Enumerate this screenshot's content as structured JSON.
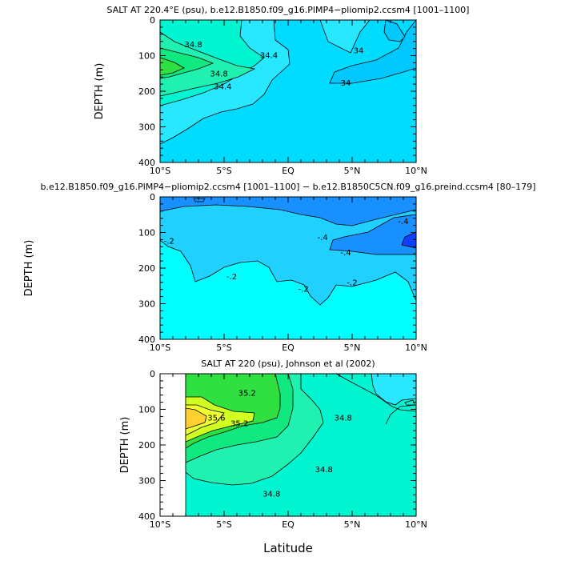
{
  "colors": {
    "c33_8": "#00c8ff",
    "c34_0": "#00dcff",
    "c34_4": "#28e8ff",
    "c34_6": "#00f5d0",
    "c34_8": "#20f0b0",
    "c35_0": "#10e880",
    "c35_2": "#30e040",
    "c35_6": "#d0ff20",
    "c35_8": "#ffd030",
    "d_m6": "#1040ff",
    "d_m4": "#1890ff",
    "d_m2": "#20d0ff",
    "d_0": "#00ffff"
  },
  "figure": {
    "xlabel": "Latitude"
  },
  "chart_data": [
    {
      "type": "heatmap",
      "title": "SALT AT 220.4°E (psu), b.e12.B1850.f09_g16.PlMP4−pliomip2.ccsm4 [1001–1100]",
      "xlabel": "",
      "ylabel": "DEPTH (m)",
      "xlim": [
        -10,
        10
      ],
      "ylim": [
        400,
        0
      ],
      "x_ticks": [
        "10°S",
        "5°S",
        "EQ",
        "5°N",
        "10°N"
      ],
      "y_ticks": [
        "0",
        "100",
        "200",
        "300",
        "400"
      ],
      "contour_labels": [
        {
          "text": "34.8",
          "x": -7.4,
          "y": 70
        },
        {
          "text": "34.4",
          "x": -1.5,
          "y": 100
        },
        {
          "text": "34.8",
          "x": -5.4,
          "y": 152
        },
        {
          "text": "34.4",
          "x": -5.1,
          "y": 188
        },
        {
          "text": "34",
          "x": 5.5,
          "y": 87
        },
        {
          "text": "34",
          "x": 4.5,
          "y": 178
        }
      ]
    },
    {
      "type": "heatmap",
      "title": "b.e12.B1850.f09_g16.PlMP4−pliomip2.ccsm4 [1001–1100] − b.e12.B1850C5CN.f09_g16.preind.ccsm4 [80–179]",
      "xlabel": "",
      "ylabel": "DEPTH (m)",
      "xlim": [
        -10,
        10
      ],
      "ylim": [
        400,
        0
      ],
      "x_ticks": [
        "10°S",
        "5°S",
        "EQ",
        "5°N",
        "10°N"
      ],
      "y_ticks": [
        "0",
        "100",
        "200",
        "300",
        "400"
      ],
      "contour_labels": [
        {
          "text": "-.4",
          "x": 9.0,
          "y": 70
        },
        {
          "text": "-.4",
          "x": 2.7,
          "y": 115
        },
        {
          "text": "-.4",
          "x": 4.5,
          "y": 157
        },
        {
          "text": "-.2",
          "x": -9.3,
          "y": 125
        },
        {
          "text": "-.2",
          "x": -4.4,
          "y": 225
        },
        {
          "text": "-.2",
          "x": 1.2,
          "y": 260
        },
        {
          "text": "-.2",
          "x": 5.0,
          "y": 242
        }
      ]
    },
    {
      "type": "heatmap",
      "title": "SALT AT 220 (psu), Johnson et al (2002)",
      "xlabel": "Latitude",
      "ylabel": "DEPTH (m)",
      "xlim": [
        -10,
        10
      ],
      "ylim": [
        400,
        0
      ],
      "x_ticks": [
        "10°S",
        "5°S",
        "EQ",
        "5°N",
        "10°N"
      ],
      "y_ticks": [
        "0",
        "100",
        "200",
        "300",
        "400"
      ],
      "contour_labels": [
        {
          "text": "35.2",
          "x": -3.2,
          "y": 55
        },
        {
          "text": "35.6",
          "x": -5.6,
          "y": 125
        },
        {
          "text": "35.2",
          "x": -3.8,
          "y": 140
        },
        {
          "text": "34.8",
          "x": 4.3,
          "y": 125
        },
        {
          "text": "34.8",
          "x": 2.8,
          "y": 270
        },
        {
          "text": "34.8",
          "x": -1.3,
          "y": 338
        }
      ]
    }
  ]
}
